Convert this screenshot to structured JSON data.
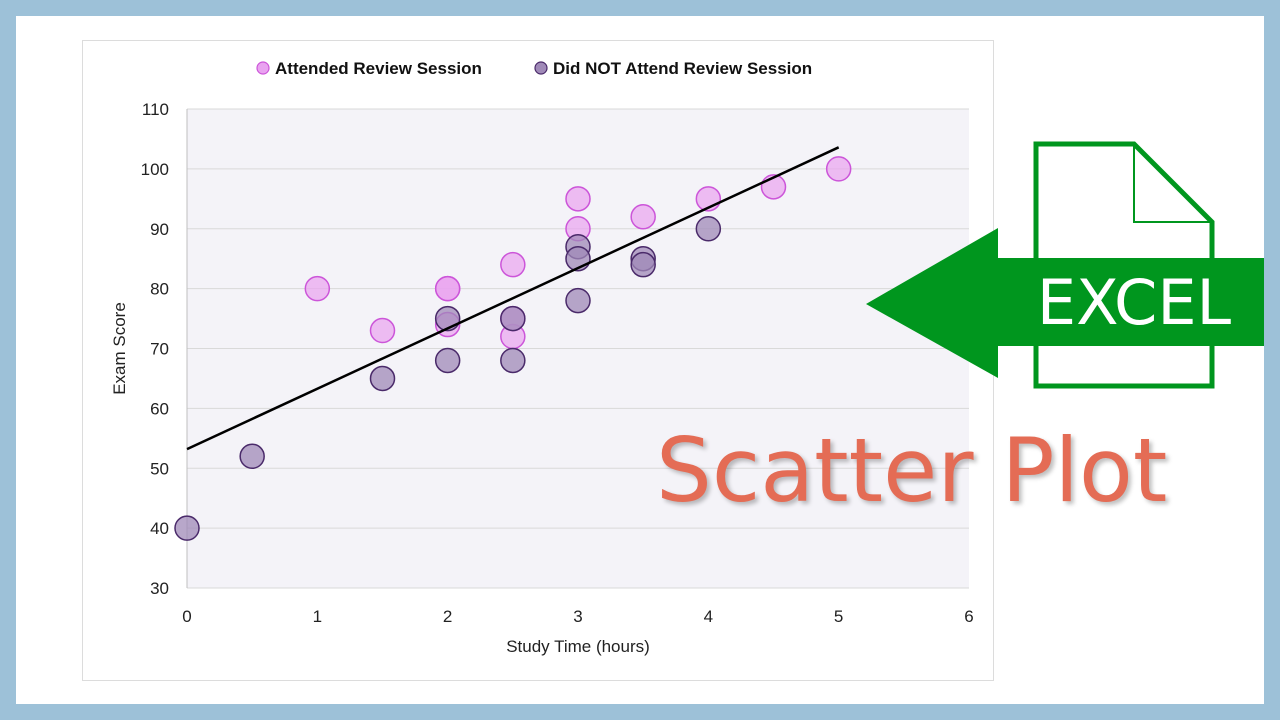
{
  "graphic": {
    "badge": "EXCEL",
    "headline": "Scatter Plot",
    "accent_green": "#00961e",
    "headline_color": "#e46c55",
    "icon": "excel-file-icon",
    "arrow": "left-arrow-icon"
  },
  "chart_data": {
    "type": "scatter",
    "xlabel": "Study Time (hours)",
    "ylabel": "Exam Score",
    "xlim": [
      0,
      6
    ],
    "ylim": [
      30,
      110
    ],
    "x_ticks": [
      "0",
      "1",
      "2",
      "3",
      "4",
      "5",
      "6"
    ],
    "y_ticks": [
      "30",
      "40",
      "50",
      "60",
      "70",
      "80",
      "90",
      "100",
      "110"
    ],
    "grid": "horizontal",
    "legend_position": "top",
    "plot_background": "#f4f3f8",
    "series": [
      {
        "name": "Attended Review Session",
        "color": "#e9a3f0",
        "stroke": "#cc55d9",
        "points": [
          [
            1,
            80
          ],
          [
            1.5,
            73
          ],
          [
            2,
            80
          ],
          [
            2,
            74
          ],
          [
            2,
            80
          ],
          [
            2.5,
            84
          ],
          [
            2.5,
            72
          ],
          [
            2.5,
            75
          ],
          [
            3,
            95
          ],
          [
            3,
            90
          ],
          [
            3.5,
            92
          ],
          [
            4,
            95
          ],
          [
            4.5,
            97
          ],
          [
            5,
            100
          ]
        ]
      },
      {
        "name": "Did NOT Attend Review Session",
        "color": "#a08ab8",
        "stroke": "#4a2a6a",
        "points": [
          [
            0,
            40
          ],
          [
            0.5,
            52
          ],
          [
            1.5,
            65
          ],
          [
            2,
            75
          ],
          [
            2,
            68
          ],
          [
            2.5,
            75
          ],
          [
            2.5,
            68
          ],
          [
            3,
            87
          ],
          [
            3,
            85
          ],
          [
            3,
            78
          ],
          [
            3.5,
            85
          ],
          [
            3.5,
            84
          ],
          [
            4,
            90
          ]
        ]
      }
    ],
    "trendline": {
      "x": [
        0,
        5
      ],
      "y": [
        53.2,
        103.6
      ],
      "color": "#000000"
    }
  }
}
